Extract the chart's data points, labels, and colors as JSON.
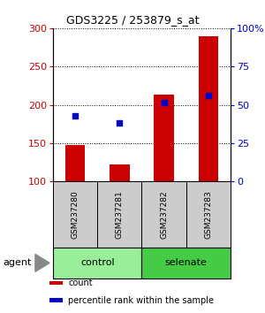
{
  "title": "GDS3225 / 253879_s_at",
  "samples": [
    "GSM237280",
    "GSM237281",
    "GSM237282",
    "GSM237283"
  ],
  "bar_bottoms": [
    100,
    100,
    100,
    100
  ],
  "bar_tops": [
    148,
    122,
    213,
    290
  ],
  "blue_values": [
    186,
    177,
    203,
    212
  ],
  "ylim": [
    100,
    300
  ],
  "left_yticks": [
    100,
    150,
    200,
    250,
    300
  ],
  "right_yticks": [
    0,
    25,
    50,
    75,
    100
  ],
  "bar_color": "#cc0000",
  "blue_color": "#0000cc",
  "groups": [
    {
      "label": "control",
      "indices": [
        0,
        1
      ],
      "color": "#99ee99"
    },
    {
      "label": "selenate",
      "indices": [
        2,
        3
      ],
      "color": "#44cc44"
    }
  ],
  "agent_label": "agent",
  "legend_items": [
    {
      "color": "#cc0000",
      "label": "count"
    },
    {
      "color": "#0000cc",
      "label": "percentile rank within the sample"
    }
  ],
  "sample_box_color": "#cccccc",
  "figsize": [
    3.0,
    3.54
  ],
  "dpi": 100
}
